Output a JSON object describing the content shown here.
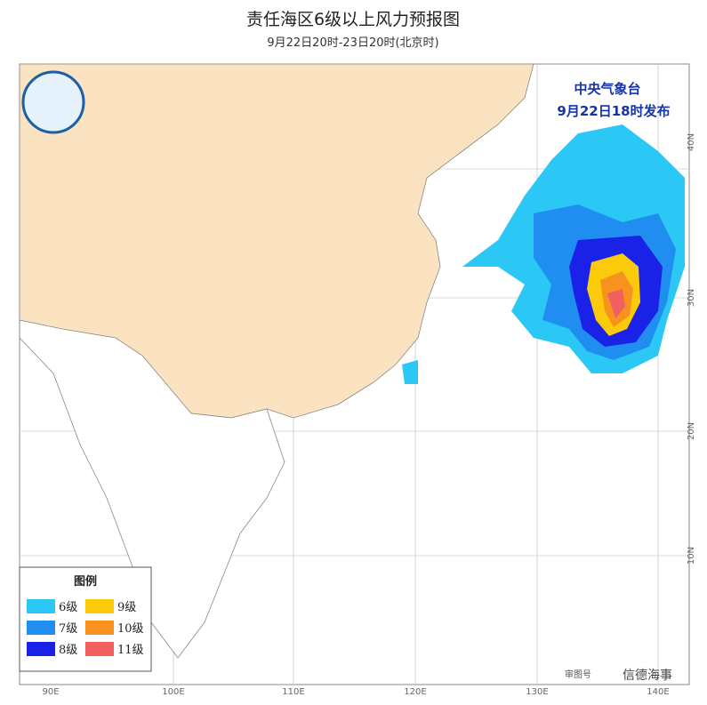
{
  "header": {
    "title": "责任海区6级以上风力预报图",
    "subtitle": "9月22日20时-23日20时(北京时)"
  },
  "issuer": {
    "agency": "中央气象台",
    "issued": "9月22日18时发布"
  },
  "legend": {
    "title": "图例",
    "items": [
      {
        "label": "6级",
        "color": "#2bc8f5"
      },
      {
        "label": "7级",
        "color": "#1f8ef0"
      },
      {
        "label": "8级",
        "color": "#1a22e8"
      },
      {
        "label": "9级",
        "color": "#fbcb0b"
      },
      {
        "label": "10级",
        "color": "#f7921e"
      },
      {
        "label": "11级",
        "color": "#f06060"
      }
    ]
  },
  "axes": {
    "longitude": [
      "90E",
      "100E",
      "110E",
      "120E",
      "130E",
      "140E"
    ],
    "latitude": [
      "40N",
      "30N",
      "20N",
      "10N"
    ]
  },
  "footer": {
    "approval": "审图号",
    "watermark": "信德海事"
  }
}
